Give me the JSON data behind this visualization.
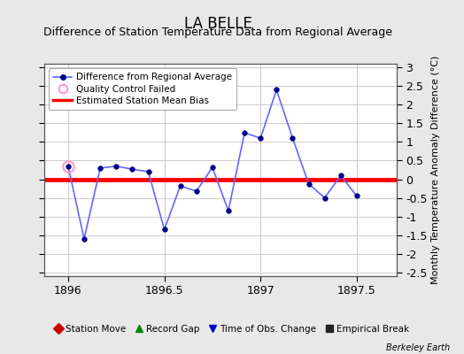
{
  "title": "LA BELLE",
  "subtitle": "Difference of Station Temperature Data from Regional Average",
  "ylabel": "Monthly Temperature Anomaly Difference (°C)",
  "xlabel_bottom": "Berkeley Earth",
  "xlim": [
    1895.875,
    1897.708
  ],
  "ylim": [
    -2.6,
    3.1
  ],
  "yticks": [
    -2.5,
    -2,
    -1.5,
    -1,
    -0.5,
    0,
    0.5,
    1,
    1.5,
    2,
    2.5,
    3
  ],
  "xticks": [
    1896,
    1896.5,
    1897,
    1897.5
  ],
  "x_data": [
    1896.0,
    1896.083,
    1896.167,
    1896.25,
    1896.333,
    1896.417,
    1896.5,
    1896.583,
    1896.667,
    1896.75,
    1896.833,
    1896.917,
    1897.0,
    1897.083,
    1897.167,
    1897.25,
    1897.333,
    1897.417,
    1897.5
  ],
  "y_data": [
    0.35,
    -1.6,
    0.3,
    0.35,
    0.27,
    0.2,
    -1.35,
    -0.18,
    -0.32,
    0.32,
    -0.85,
    1.25,
    1.1,
    2.4,
    1.1,
    -0.12,
    -0.5,
    0.1,
    -0.45
  ],
  "qc_fail_x": [
    1896.0
  ],
  "qc_fail_y": [
    0.35
  ],
  "bias_y": 0.0,
  "line_color": "#6666ff",
  "line_width": 1.2,
  "marker_color": "#000088",
  "marker_size": 4,
  "bias_color": "#ff0000",
  "bias_linewidth": 3.5,
  "qc_color": "#ff99cc",
  "bg_color": "#e8e8e8",
  "plot_bg": "#ffffff",
  "grid_color": "#cccccc",
  "title_fontsize": 12,
  "subtitle_fontsize": 9,
  "tick_fontsize": 9,
  "legend_bottom_items": [
    {
      "label": "Station Move",
      "color": "#cc0000",
      "marker": "D"
    },
    {
      "label": "Record Gap",
      "color": "#008800",
      "marker": "^"
    },
    {
      "label": "Time of Obs. Change",
      "color": "#0000cc",
      "marker": "v"
    },
    {
      "label": "Empirical Break",
      "color": "#222222",
      "marker": "s"
    }
  ]
}
